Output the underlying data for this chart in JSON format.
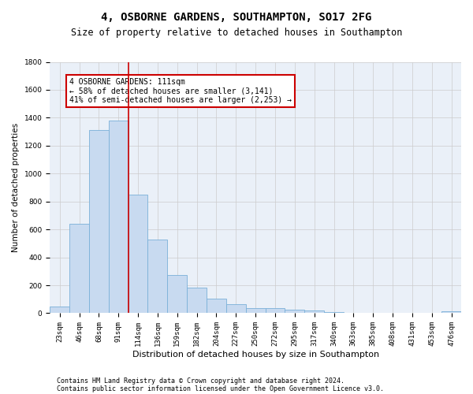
{
  "title": "4, OSBORNE GARDENS, SOUTHAMPTON, SO17 2FG",
  "subtitle": "Size of property relative to detached houses in Southampton",
  "xlabel": "Distribution of detached houses by size in Southampton",
  "ylabel": "Number of detached properties",
  "bar_color": "#c8daf0",
  "bar_edge_color": "#7ab0d8",
  "grid_color": "#cccccc",
  "background_color": "#ffffff",
  "plot_bg_color": "#eaf0f8",
  "annotation_box_color": "#cc0000",
  "vline_color": "#cc0000",
  "categories": [
    "23sqm",
    "46sqm",
    "68sqm",
    "91sqm",
    "114sqm",
    "136sqm",
    "159sqm",
    "182sqm",
    "204sqm",
    "227sqm",
    "250sqm",
    "272sqm",
    "295sqm",
    "317sqm",
    "340sqm",
    "363sqm",
    "385sqm",
    "408sqm",
    "431sqm",
    "453sqm",
    "476sqm"
  ],
  "values": [
    50,
    640,
    1310,
    1380,
    850,
    530,
    275,
    185,
    105,
    65,
    35,
    35,
    28,
    20,
    10,
    5,
    5,
    3,
    2,
    2,
    15
  ],
  "ylim": [
    0,
    1800
  ],
  "yticks": [
    0,
    200,
    400,
    600,
    800,
    1000,
    1200,
    1400,
    1600,
    1800
  ],
  "vline_index": 4,
  "annotation_text": "4 OSBORNE GARDENS: 111sqm\n← 58% of detached houses are smaller (3,141)\n41% of semi-detached houses are larger (2,253) →",
  "footer_line1": "Contains HM Land Registry data © Crown copyright and database right 2024.",
  "footer_line2": "Contains public sector information licensed under the Open Government Licence v3.0.",
  "title_fontsize": 10,
  "subtitle_fontsize": 8.5,
  "xlabel_fontsize": 8,
  "ylabel_fontsize": 7.5,
  "tick_fontsize": 6.5,
  "annot_fontsize": 7,
  "footer_fontsize": 6
}
